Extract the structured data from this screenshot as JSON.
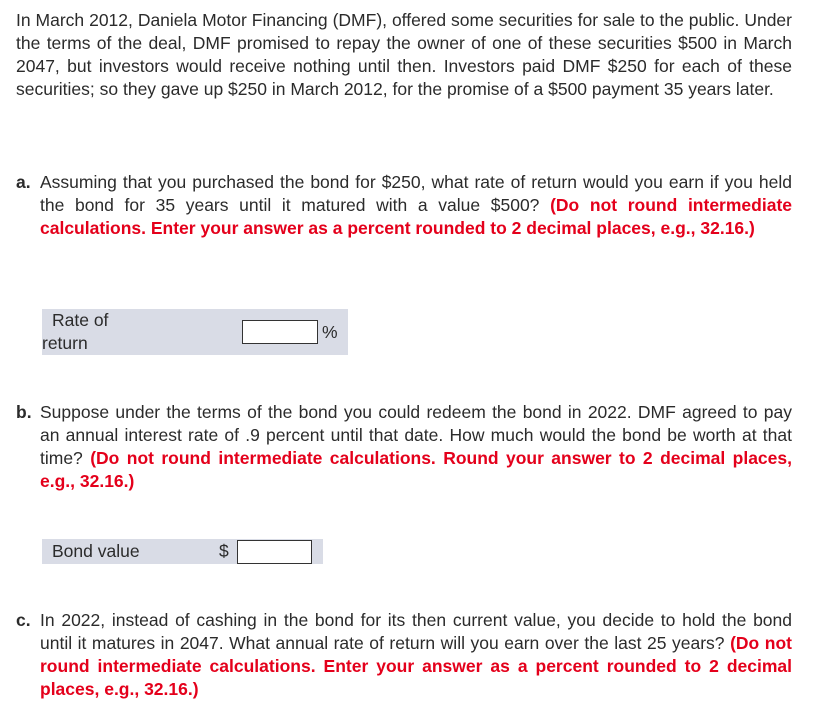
{
  "intro": "In March 2012, Daniela Motor Financing (DMF), offered some securities for sale to the public. Under the terms of the deal, DMF promised to repay the owner of one of these securities $500 in March 2047, but investors would receive nothing until then. Investors paid DMF $250 for each of these securities; so they gave up $250 in March 2012, for the promise of a $500 payment 35 years later.",
  "parts": [
    {
      "label": "a.",
      "text": "Assuming that you purchased the bond for $250, what rate of return would you earn if you held the bond for 35 years until it matured with a value $500?",
      "instruction": "(Do not round intermediate calculations. Enter your answer as a percent rounded to 2 decimal places, e.g., 32.16.)",
      "field_label_1": "Rate of",
      "field_label_2": "return",
      "field_value": "",
      "unit": "%"
    },
    {
      "label": "b.",
      "text": "Suppose under the terms of the bond you could redeem the bond in 2022. DMF agreed to pay an annual interest rate of .9 percent until that date. How much would the bond be worth at that time?",
      "instruction": "(Do not round intermediate calculations. Round your answer to 2 decimal places, e.g., 32.16.)",
      "field_label": "Bond value",
      "field_value": "",
      "prefix": "$"
    },
    {
      "label": "c.",
      "text": "In 2022, instead of cashing in the bond for its then current value, you decide to hold the bond until it matures in 2047. What annual rate of return will you earn over the last 25 years?",
      "instruction": "(Do not round intermediate calculations. Enter your answer as a percent rounded to 2 decimal places, e.g., 32.16.)"
    }
  ]
}
